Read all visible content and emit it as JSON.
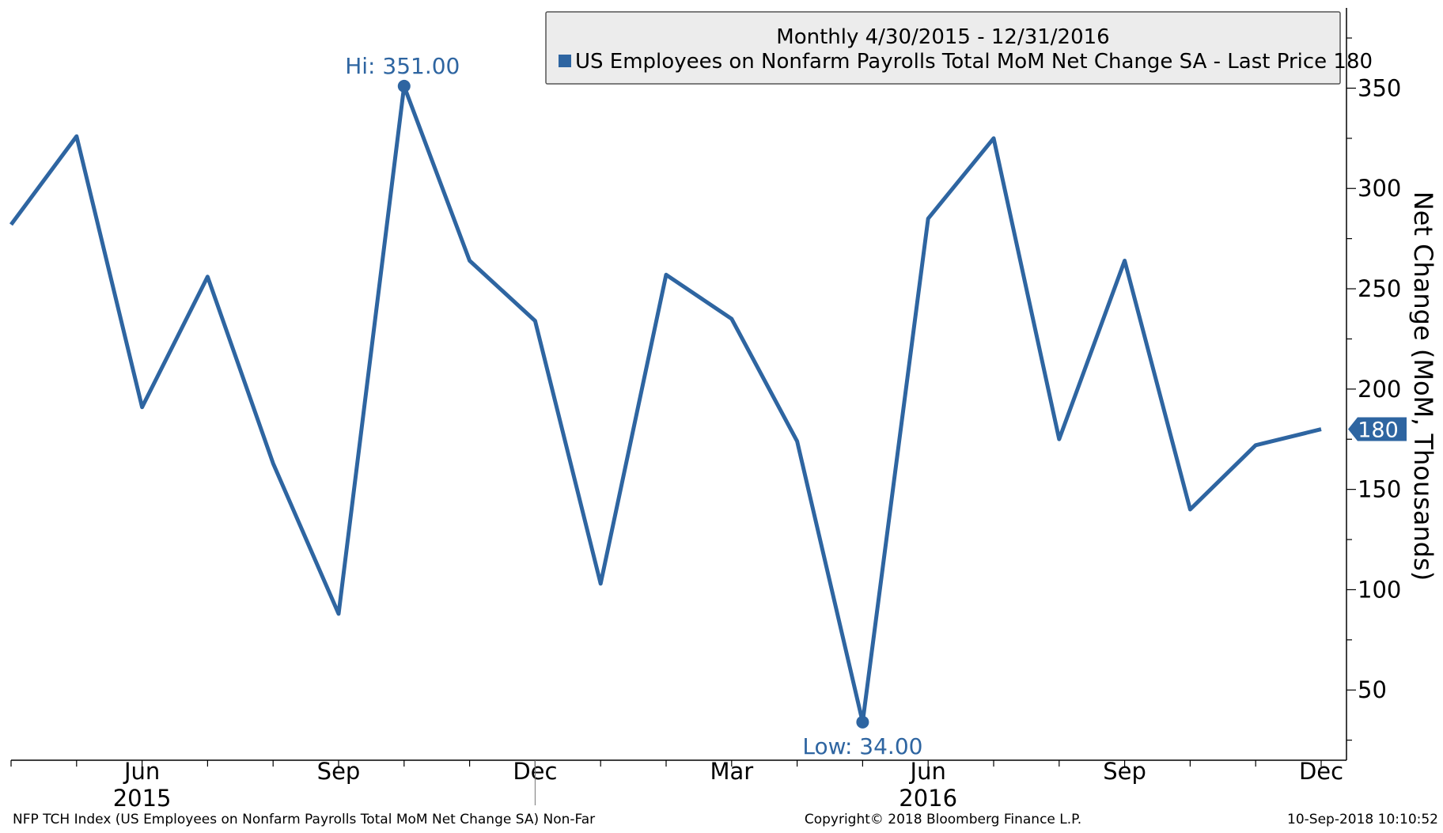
{
  "chart_data": {
    "type": "line",
    "title": "Monthly 4/30/2015 - 12/31/2016",
    "ylabel": "Net Change (MoM, Thousands)",
    "xlabel": "",
    "ylim": [
      15,
      390
    ],
    "y_ticks": [
      50,
      100,
      150,
      200,
      250,
      300,
      350
    ],
    "x_tick_labels": [
      "Jun",
      "Sep",
      "Dec",
      "Mar",
      "Jun",
      "Sep",
      "Dec"
    ],
    "year_labels": [
      "2015",
      "2016"
    ],
    "grid": false,
    "legend_position": "top-right",
    "series": [
      {
        "name": "US Employees on Nonfarm Payrolls Total MoM Net Change SA - Last Price 180",
        "color": "#2e65a1",
        "x": [
          "2015-04-30",
          "2015-05-31",
          "2015-06-30",
          "2015-07-31",
          "2015-08-31",
          "2015-09-30",
          "2015-10-31",
          "2015-11-30",
          "2015-12-31",
          "2016-01-31",
          "2016-02-29",
          "2016-03-31",
          "2016-04-30",
          "2016-05-31",
          "2016-06-30",
          "2016-07-31",
          "2016-08-31",
          "2016-09-30",
          "2016-10-31",
          "2016-11-30",
          "2016-12-31"
        ],
        "values": [
          282,
          326,
          191,
          256,
          163,
          88,
          351,
          264,
          234,
          103,
          257,
          235,
          174,
          34,
          285,
          325,
          175,
          264,
          140,
          172,
          180
        ]
      }
    ],
    "annotations": {
      "high": {
        "label": "Hi: 351.00",
        "value": 351,
        "date": "2015-10-31"
      },
      "low": {
        "label": "Low: 34.00",
        "value": 34,
        "date": "2016-05-31"
      },
      "last_price": {
        "label": "180",
        "value": 180
      }
    }
  },
  "footer": {
    "left": "NFP TCH Index (US Employees on Nonfarm Payrolls Total MoM Net Change SA) Non-Far",
    "center": "Copyright© 2018 Bloomberg Finance L.P.",
    "right": "10-Sep-2018 10:10:52"
  }
}
